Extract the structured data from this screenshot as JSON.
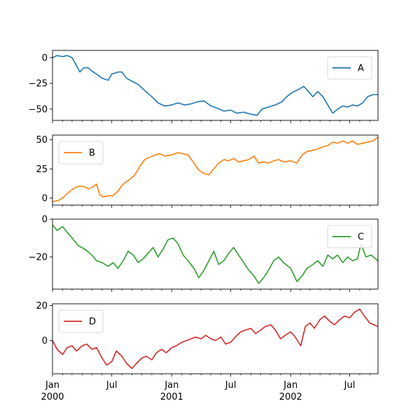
{
  "chart_data": {
    "type": "line",
    "x_axis": {
      "type": "date",
      "range": [
        "2000-01-01",
        "2002-09-26"
      ],
      "major_ticks": [
        {
          "date": "2000-01-01",
          "label": "Jan",
          "sublabel": "2000"
        },
        {
          "date": "2000-07-01",
          "label": "Jul",
          "sublabel": ""
        },
        {
          "date": "2001-01-01",
          "label": "Jan",
          "sublabel": "2001"
        },
        {
          "date": "2001-07-01",
          "label": "Jul",
          "sublabel": ""
        },
        {
          "date": "2002-01-01",
          "label": "Jan",
          "sublabel": "2002"
        },
        {
          "date": "2002-07-01",
          "label": "Jul",
          "sublabel": ""
        }
      ],
      "minor_ticks": "monthly"
    },
    "subplots": [
      {
        "name": "A",
        "color": "#1f77b4",
        "legend_position": "upper right",
        "ylim": [
          -61,
          7
        ],
        "yticks": [
          0,
          -25,
          -50
        ],
        "points": [
          [
            "2000-01-01",
            0
          ],
          [
            "2000-01-15",
            2
          ],
          [
            "2000-02-01",
            1
          ],
          [
            "2000-02-15",
            2
          ],
          [
            "2000-03-01",
            0
          ],
          [
            "2000-03-15",
            -8
          ],
          [
            "2000-03-25",
            -14
          ],
          [
            "2000-04-05",
            -10
          ],
          [
            "2000-04-20",
            -10
          ],
          [
            "2000-05-01",
            -13
          ],
          [
            "2000-05-15",
            -16
          ],
          [
            "2000-06-01",
            -20
          ],
          [
            "2000-06-20",
            -22
          ],
          [
            "2000-07-01",
            -16
          ],
          [
            "2000-07-20",
            -14
          ],
          [
            "2000-08-01",
            -14
          ],
          [
            "2000-08-15",
            -20
          ],
          [
            "2000-09-01",
            -23
          ],
          [
            "2000-09-20",
            -26
          ],
          [
            "2000-10-10",
            -32
          ],
          [
            "2000-11-01",
            -38
          ],
          [
            "2000-11-20",
            -44
          ],
          [
            "2000-12-10",
            -47
          ],
          [
            "2001-01-01",
            -46
          ],
          [
            "2001-01-20",
            -44
          ],
          [
            "2001-02-10",
            -46
          ],
          [
            "2001-03-01",
            -45
          ],
          [
            "2001-03-20",
            -43
          ],
          [
            "2001-04-10",
            -42
          ],
          [
            "2001-05-01",
            -47
          ],
          [
            "2001-05-20",
            -49
          ],
          [
            "2001-06-10",
            -52
          ],
          [
            "2001-07-01",
            -51
          ],
          [
            "2001-07-20",
            -54
          ],
          [
            "2001-08-10",
            -53
          ],
          [
            "2001-09-01",
            -55
          ],
          [
            "2001-09-20",
            -56
          ],
          [
            "2001-10-05",
            -50
          ],
          [
            "2001-10-25",
            -48
          ],
          [
            "2001-11-15",
            -46
          ],
          [
            "2001-12-05",
            -43
          ],
          [
            "2001-12-20",
            -38
          ],
          [
            "2002-01-05",
            -34
          ],
          [
            "2002-01-25",
            -31
          ],
          [
            "2002-02-10",
            -28
          ],
          [
            "2002-02-25",
            -33
          ],
          [
            "2002-03-10",
            -38
          ],
          [
            "2002-03-25",
            -33
          ],
          [
            "2002-04-10",
            -38
          ],
          [
            "2002-04-25",
            -46
          ],
          [
            "2002-05-10",
            -54
          ],
          [
            "2002-05-25",
            -50
          ],
          [
            "2002-06-10",
            -47
          ],
          [
            "2002-06-25",
            -48
          ],
          [
            "2002-07-10",
            -46
          ],
          [
            "2002-07-25",
            -47
          ],
          [
            "2002-08-10",
            -44
          ],
          [
            "2002-08-25",
            -38
          ],
          [
            "2002-09-10",
            -36
          ],
          [
            "2002-09-26",
            -36
          ]
        ]
      },
      {
        "name": "B",
        "color": "#ff7f0e",
        "legend_position": "upper left",
        "ylim": [
          -6,
          54
        ],
        "yticks": [
          50,
          25,
          0
        ],
        "points": [
          [
            "2000-01-01",
            -3
          ],
          [
            "2000-01-20",
            -2
          ],
          [
            "2000-02-05",
            1
          ],
          [
            "2000-02-20",
            5
          ],
          [
            "2000-03-05",
            8
          ],
          [
            "2000-03-20",
            10
          ],
          [
            "2000-04-05",
            10
          ],
          [
            "2000-04-20",
            8
          ],
          [
            "2000-05-01",
            9
          ],
          [
            "2000-05-15",
            12
          ],
          [
            "2000-05-25",
            3
          ],
          [
            "2000-06-05",
            1
          ],
          [
            "2000-06-20",
            2
          ],
          [
            "2000-07-05",
            2
          ],
          [
            "2000-07-20",
            6
          ],
          [
            "2000-08-05",
            12
          ],
          [
            "2000-08-25",
            16
          ],
          [
            "2000-09-10",
            20
          ],
          [
            "2000-09-25",
            27
          ],
          [
            "2000-10-10",
            33
          ],
          [
            "2000-10-25",
            35
          ],
          [
            "2000-11-10",
            37
          ],
          [
            "2000-11-25",
            38
          ],
          [
            "2000-12-10",
            36
          ],
          [
            "2001-01-01",
            37
          ],
          [
            "2001-01-20",
            39
          ],
          [
            "2001-02-05",
            38
          ],
          [
            "2001-02-20",
            37
          ],
          [
            "2001-03-10",
            30
          ],
          [
            "2001-03-25",
            24
          ],
          [
            "2001-04-10",
            21
          ],
          [
            "2001-04-25",
            20
          ],
          [
            "2001-05-10",
            25
          ],
          [
            "2001-05-25",
            30
          ],
          [
            "2001-06-10",
            33
          ],
          [
            "2001-06-25",
            32
          ],
          [
            "2001-07-10",
            34
          ],
          [
            "2001-07-25",
            31
          ],
          [
            "2001-08-10",
            32
          ],
          [
            "2001-08-25",
            33
          ],
          [
            "2001-09-10",
            36
          ],
          [
            "2001-09-25",
            30
          ],
          [
            "2001-10-10",
            31
          ],
          [
            "2001-10-25",
            30
          ],
          [
            "2001-11-10",
            32
          ],
          [
            "2001-11-25",
            33
          ],
          [
            "2001-12-10",
            31
          ],
          [
            "2002-01-01",
            32
          ],
          [
            "2002-01-20",
            30
          ],
          [
            "2002-02-05",
            37
          ],
          [
            "2002-02-20",
            40
          ],
          [
            "2002-03-10",
            41
          ],
          [
            "2002-03-25",
            42
          ],
          [
            "2002-04-10",
            44
          ],
          [
            "2002-04-25",
            45
          ],
          [
            "2002-05-10",
            48
          ],
          [
            "2002-05-25",
            47
          ],
          [
            "2002-06-10",
            49
          ],
          [
            "2002-06-25",
            47
          ],
          [
            "2002-07-10",
            49
          ],
          [
            "2002-07-25",
            46
          ],
          [
            "2002-08-10",
            47
          ],
          [
            "2002-08-25",
            48
          ],
          [
            "2002-09-10",
            49
          ],
          [
            "2002-09-26",
            52
          ]
        ]
      },
      {
        "name": "C",
        "color": "#2ca02c",
        "legend_position": "upper right",
        "ylim": [
          -37,
          0
        ],
        "yticks": [
          0,
          -20
        ],
        "points": [
          [
            "2000-01-01",
            -3
          ],
          [
            "2000-01-15",
            -6
          ],
          [
            "2000-02-01",
            -4
          ],
          [
            "2000-02-15",
            -7
          ],
          [
            "2000-03-01",
            -10
          ],
          [
            "2000-03-20",
            -14
          ],
          [
            "2000-04-10",
            -16
          ],
          [
            "2000-05-01",
            -19
          ],
          [
            "2000-05-15",
            -22
          ],
          [
            "2000-06-01",
            -23
          ],
          [
            "2000-06-20",
            -25
          ],
          [
            "2000-07-05",
            -23
          ],
          [
            "2000-07-20",
            -26
          ],
          [
            "2000-08-05",
            -22
          ],
          [
            "2000-08-20",
            -17
          ],
          [
            "2000-09-05",
            -19
          ],
          [
            "2000-09-20",
            -23
          ],
          [
            "2000-10-05",
            -21
          ],
          [
            "2000-10-20",
            -18
          ],
          [
            "2000-11-05",
            -15
          ],
          [
            "2000-11-20",
            -20
          ],
          [
            "2000-12-05",
            -16
          ],
          [
            "2000-12-20",
            -11
          ],
          [
            "2001-01-05",
            -10
          ],
          [
            "2001-01-20",
            -13
          ],
          [
            "2001-02-05",
            -19
          ],
          [
            "2001-02-20",
            -22
          ],
          [
            "2001-03-10",
            -26
          ],
          [
            "2001-03-25",
            -31
          ],
          [
            "2001-04-10",
            -27
          ],
          [
            "2001-04-25",
            -22
          ],
          [
            "2001-05-10",
            -17
          ],
          [
            "2001-05-25",
            -24
          ],
          [
            "2001-06-10",
            -22
          ],
          [
            "2001-06-25",
            -18
          ],
          [
            "2001-07-10",
            -15
          ],
          [
            "2001-07-25",
            -19
          ],
          [
            "2001-08-10",
            -23
          ],
          [
            "2001-08-25",
            -27
          ],
          [
            "2001-09-10",
            -30
          ],
          [
            "2001-09-25",
            -34
          ],
          [
            "2001-10-10",
            -31
          ],
          [
            "2001-10-25",
            -27
          ],
          [
            "2001-11-10",
            -22
          ],
          [
            "2001-11-25",
            -20
          ],
          [
            "2001-12-10",
            -23
          ],
          [
            "2002-01-01",
            -26
          ],
          [
            "2002-01-20",
            -33
          ],
          [
            "2002-02-05",
            -30
          ],
          [
            "2002-02-20",
            -26
          ],
          [
            "2002-03-10",
            -24
          ],
          [
            "2002-03-25",
            -22
          ],
          [
            "2002-04-10",
            -25
          ],
          [
            "2002-04-25",
            -19
          ],
          [
            "2002-05-10",
            -21
          ],
          [
            "2002-05-25",
            -19
          ],
          [
            "2002-06-10",
            -23
          ],
          [
            "2002-06-25",
            -20
          ],
          [
            "2002-07-10",
            -22
          ],
          [
            "2002-07-25",
            -21
          ],
          [
            "2002-08-05",
            -13
          ],
          [
            "2002-08-20",
            -20
          ],
          [
            "2002-09-05",
            -19
          ],
          [
            "2002-09-26",
            -22
          ]
        ]
      },
      {
        "name": "D",
        "color": "#d62728",
        "legend_position": "upper left",
        "ylim": [
          -19,
          21
        ],
        "yticks": [
          20,
          0
        ],
        "points": [
          [
            "2000-01-01",
            0
          ],
          [
            "2000-01-15",
            -5
          ],
          [
            "2000-02-01",
            -8
          ],
          [
            "2000-02-15",
            -4
          ],
          [
            "2000-03-01",
            -3
          ],
          [
            "2000-03-15",
            -6
          ],
          [
            "2000-04-01",
            -3
          ],
          [
            "2000-04-15",
            -2
          ],
          [
            "2000-05-01",
            -5
          ],
          [
            "2000-05-15",
            -4
          ],
          [
            "2000-06-01",
            -10
          ],
          [
            "2000-06-15",
            -14
          ],
          [
            "2000-07-01",
            -12
          ],
          [
            "2000-07-15",
            -6
          ],
          [
            "2000-08-01",
            -9
          ],
          [
            "2000-08-15",
            -13
          ],
          [
            "2000-09-01",
            -16
          ],
          [
            "2000-09-15",
            -13
          ],
          [
            "2000-10-01",
            -10
          ],
          [
            "2000-10-15",
            -9
          ],
          [
            "2000-11-01",
            -11
          ],
          [
            "2000-11-15",
            -7
          ],
          [
            "2000-12-01",
            -5
          ],
          [
            "2000-12-15",
            -7
          ],
          [
            "2001-01-01",
            -4
          ],
          [
            "2001-01-15",
            -3
          ],
          [
            "2001-02-01",
            -1
          ],
          [
            "2001-02-15",
            0
          ],
          [
            "2001-03-01",
            1
          ],
          [
            "2001-03-15",
            2
          ],
          [
            "2001-04-01",
            1
          ],
          [
            "2001-04-15",
            3
          ],
          [
            "2001-05-01",
            1
          ],
          [
            "2001-05-15",
            0
          ],
          [
            "2001-06-01",
            2
          ],
          [
            "2001-06-15",
            -2
          ],
          [
            "2001-07-01",
            -1
          ],
          [
            "2001-07-15",
            2
          ],
          [
            "2001-08-01",
            5
          ],
          [
            "2001-08-15",
            6
          ],
          [
            "2001-09-01",
            7
          ],
          [
            "2001-09-15",
            4
          ],
          [
            "2001-10-01",
            6
          ],
          [
            "2001-10-15",
            8
          ],
          [
            "2001-11-01",
            9
          ],
          [
            "2001-11-15",
            6
          ],
          [
            "2001-12-01",
            1
          ],
          [
            "2001-12-15",
            3
          ],
          [
            "2002-01-01",
            5
          ],
          [
            "2002-01-15",
            2
          ],
          [
            "2002-02-01",
            -3
          ],
          [
            "2002-02-15",
            8
          ],
          [
            "2002-03-01",
            10
          ],
          [
            "2002-03-15",
            7
          ],
          [
            "2002-04-01",
            12
          ],
          [
            "2002-04-15",
            14
          ],
          [
            "2002-05-01",
            11
          ],
          [
            "2002-05-15",
            9
          ],
          [
            "2002-06-01",
            12
          ],
          [
            "2002-06-15",
            14
          ],
          [
            "2002-07-01",
            13
          ],
          [
            "2002-07-15",
            16
          ],
          [
            "2002-08-01",
            18
          ],
          [
            "2002-08-15",
            14
          ],
          [
            "2002-09-01",
            10
          ],
          [
            "2002-09-26",
            8
          ]
        ]
      }
    ]
  }
}
